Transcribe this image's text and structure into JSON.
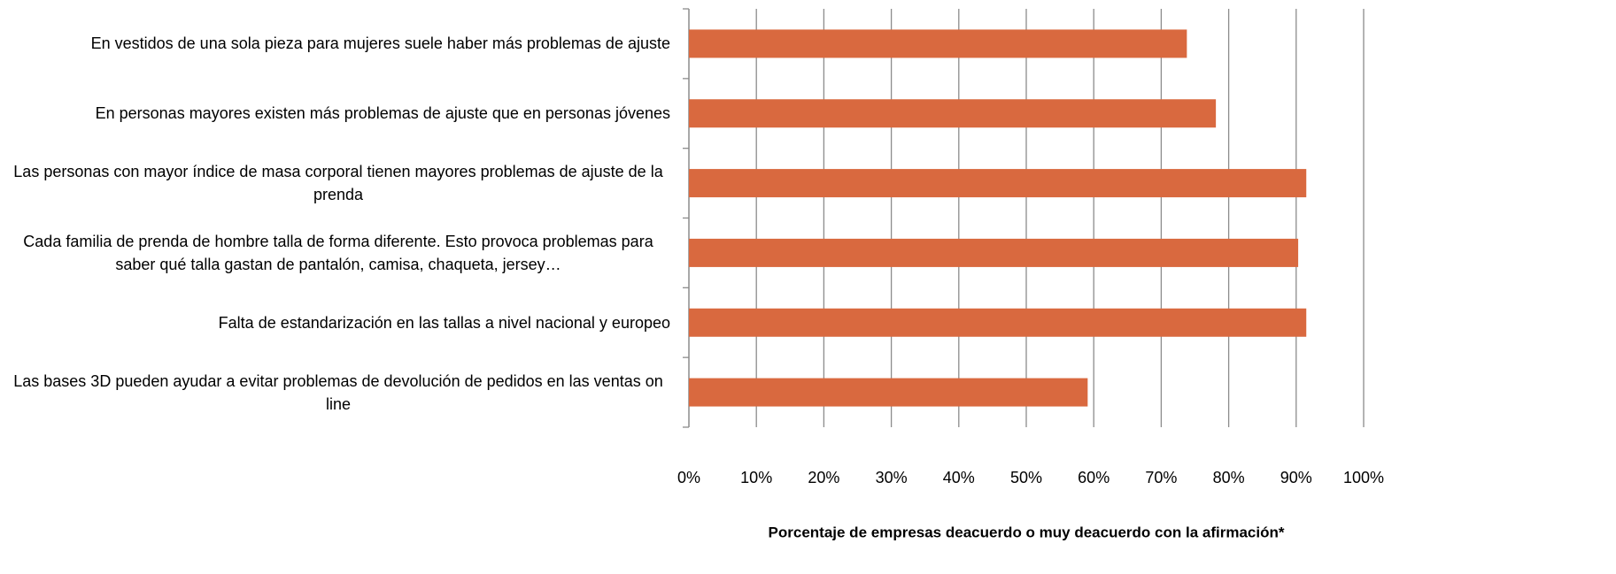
{
  "chart_data": {
    "type": "bar",
    "orientation": "horizontal",
    "x_label": "Porcentaje de empresas deacuerdo o muy deacuerdo con la afirmación*",
    "categories": [
      "En vestidos de una sola pieza para mujeres suele haber más problemas de ajuste",
      "En personas mayores existen más problemas de ajuste que en personas jóvenes",
      "Las personas con mayor índice de masa corporal tienen mayores problemas de ajuste de la prenda",
      "Cada familia de prenda de hombre talla de forma diferente. Esto provoca problemas para saber qué talla gastan de pantalón, camisa, chaqueta, jersey…",
      "Falta de estandarización en las tallas a nivel nacional y europeo",
      "Las bases 3D pueden ayudar a evitar problemas de devolución de pedidos en las ventas on line"
    ],
    "values": [
      73.8,
      78.1,
      91.5,
      90.3,
      91.5,
      59.1
    ],
    "color": "#d9693f",
    "xlim": [
      0,
      100
    ],
    "xticks": [
      {
        "value": 0,
        "label": "0%"
      },
      {
        "value": 10,
        "label": "10%"
      },
      {
        "value": 20,
        "label": "20%"
      },
      {
        "value": 30,
        "label": "30%"
      },
      {
        "value": 40,
        "label": "40%"
      },
      {
        "value": 50,
        "label": "50%"
      },
      {
        "value": 60,
        "label": "60%"
      },
      {
        "value": 70,
        "label": "70%"
      },
      {
        "value": 80,
        "label": "80%"
      },
      {
        "value": 90,
        "label": "90%"
      },
      {
        "value": 100,
        "label": "100%"
      }
    ],
    "grid": true
  }
}
